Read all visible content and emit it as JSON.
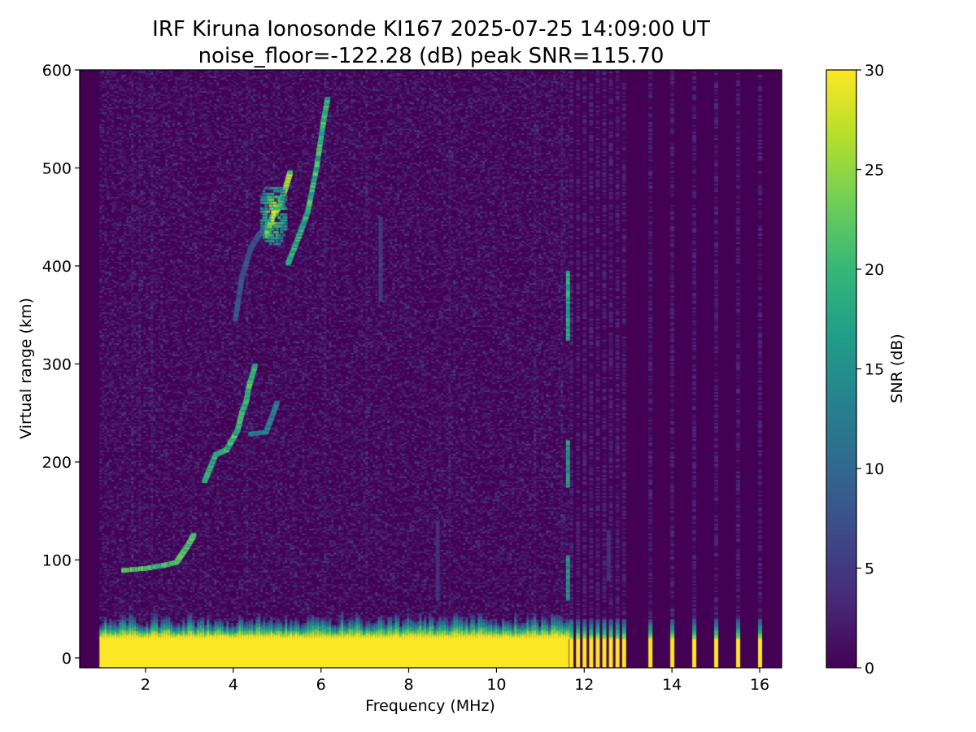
{
  "title_line1": "IRF Kiruna Ionosonde KI167 2025-07-25 14:09:00  UT",
  "title_line2": "noise_floor=-122.28 (dB) peak SNR=115.70",
  "colormap": {
    "name": "viridis",
    "stops": [
      "#440154",
      "#482878",
      "#3e4989",
      "#31688e",
      "#26828e",
      "#1f9e89",
      "#35b779",
      "#6ece58",
      "#b5de2b",
      "#fde725"
    ]
  },
  "chart_data": {
    "type": "heatmap",
    "xlabel": "Frequency (MHz)",
    "ylabel": "Virtual range (km)",
    "xlim": [
      0.5,
      16.5
    ],
    "ylim": [
      -10,
      600
    ],
    "x_ticks": [
      {
        "value": 2,
        "label": "2"
      },
      {
        "value": 4,
        "label": "4"
      },
      {
        "value": 6,
        "label": "6"
      },
      {
        "value": 8,
        "label": "8"
      },
      {
        "value": 10,
        "label": "10"
      },
      {
        "value": 12,
        "label": "12"
      },
      {
        "value": 14,
        "label": "14"
      },
      {
        "value": 16,
        "label": "16"
      }
    ],
    "y_ticks": [
      {
        "value": 0,
        "label": "0"
      },
      {
        "value": 100,
        "label": "100"
      },
      {
        "value": 200,
        "label": "200"
      },
      {
        "value": 300,
        "label": "300"
      },
      {
        "value": 400,
        "label": "400"
      },
      {
        "value": 500,
        "label": "500"
      },
      {
        "value": 600,
        "label": "600"
      }
    ],
    "colorbar": {
      "label": "SNR (dB)",
      "range": [
        0,
        30
      ],
      "ticks": [
        {
          "value": 0,
          "label": "0"
        },
        {
          "value": 5,
          "label": "5"
        },
        {
          "value": 10,
          "label": "10"
        },
        {
          "value": 15,
          "label": "15"
        },
        {
          "value": 20,
          "label": "20"
        },
        {
          "value": 25,
          "label": "25"
        },
        {
          "value": 30,
          "label": "30"
        }
      ]
    },
    "data_start_mhz": 0.95,
    "continuous_sweep_end_mhz": 11.65,
    "discrete_frequencies_mhz": [
      11.7,
      11.85,
      12.0,
      12.15,
      12.3,
      12.45,
      12.6,
      12.75,
      12.9,
      13.5,
      14.0,
      14.5,
      15.0,
      15.5,
      16.0
    ],
    "traces": [
      {
        "points": [
          [
            1.5,
            89
          ],
          [
            2.0,
            91
          ],
          [
            2.4,
            94
          ],
          [
            2.7,
            97
          ],
          [
            2.95,
            113
          ],
          [
            3.1,
            125
          ]
        ],
        "snr": 24
      },
      {
        "points": [
          [
            3.35,
            180
          ],
          [
            3.6,
            207
          ],
          [
            3.85,
            212
          ],
          [
            4.1,
            232
          ],
          [
            4.2,
            250
          ],
          [
            4.3,
            262
          ],
          [
            4.35,
            275
          ],
          [
            4.5,
            298
          ]
        ],
        "snr": 22
      },
      {
        "points": [
          [
            4.05,
            345
          ],
          [
            4.2,
            388
          ],
          [
            4.4,
            418
          ],
          [
            4.6,
            432
          ],
          [
            4.85,
            445
          ]
        ],
        "snr": 9
      },
      {
        "points": [
          [
            4.4,
            228
          ],
          [
            4.75,
            230
          ],
          [
            5.0,
            260
          ]
        ],
        "snr": 14
      },
      {
        "points": [
          [
            4.75,
            430
          ],
          [
            4.9,
            450
          ],
          [
            5.05,
            460
          ],
          [
            5.2,
            480
          ],
          [
            5.3,
            495
          ]
        ],
        "snr": 27
      },
      {
        "points": [
          [
            5.25,
            402
          ],
          [
            5.5,
            430
          ],
          [
            5.7,
            455
          ],
          [
            5.9,
            500
          ],
          [
            6.05,
            545
          ],
          [
            6.15,
            570
          ]
        ],
        "snr": 22
      }
    ],
    "blob": {
      "x_mhz": [
        4.65,
        5.2
      ],
      "range_km": [
        422,
        482
      ],
      "snr": 28
    },
    "vertical_streaks": [
      {
        "f_mhz": 11.62,
        "range_km": [
          325,
          395
        ],
        "snr": 19
      },
      {
        "f_mhz": 11.62,
        "range_km": [
          175,
          222
        ],
        "snr": 19
      },
      {
        "f_mhz": 11.62,
        "range_km": [
          60,
          105
        ],
        "snr": 18
      },
      {
        "f_mhz": 7.35,
        "range_km": [
          365,
          450
        ],
        "snr": 6
      },
      {
        "f_mhz": 8.65,
        "range_km": [
          60,
          140
        ],
        "snr": 5
      },
      {
        "f_mhz": 12.55,
        "range_km": [
          80,
          130
        ],
        "snr": 5
      }
    ],
    "ground_band": {
      "saturated_km": [
        -10,
        20
      ],
      "edge_km": [
        20,
        45
      ],
      "snr": 30
    }
  }
}
